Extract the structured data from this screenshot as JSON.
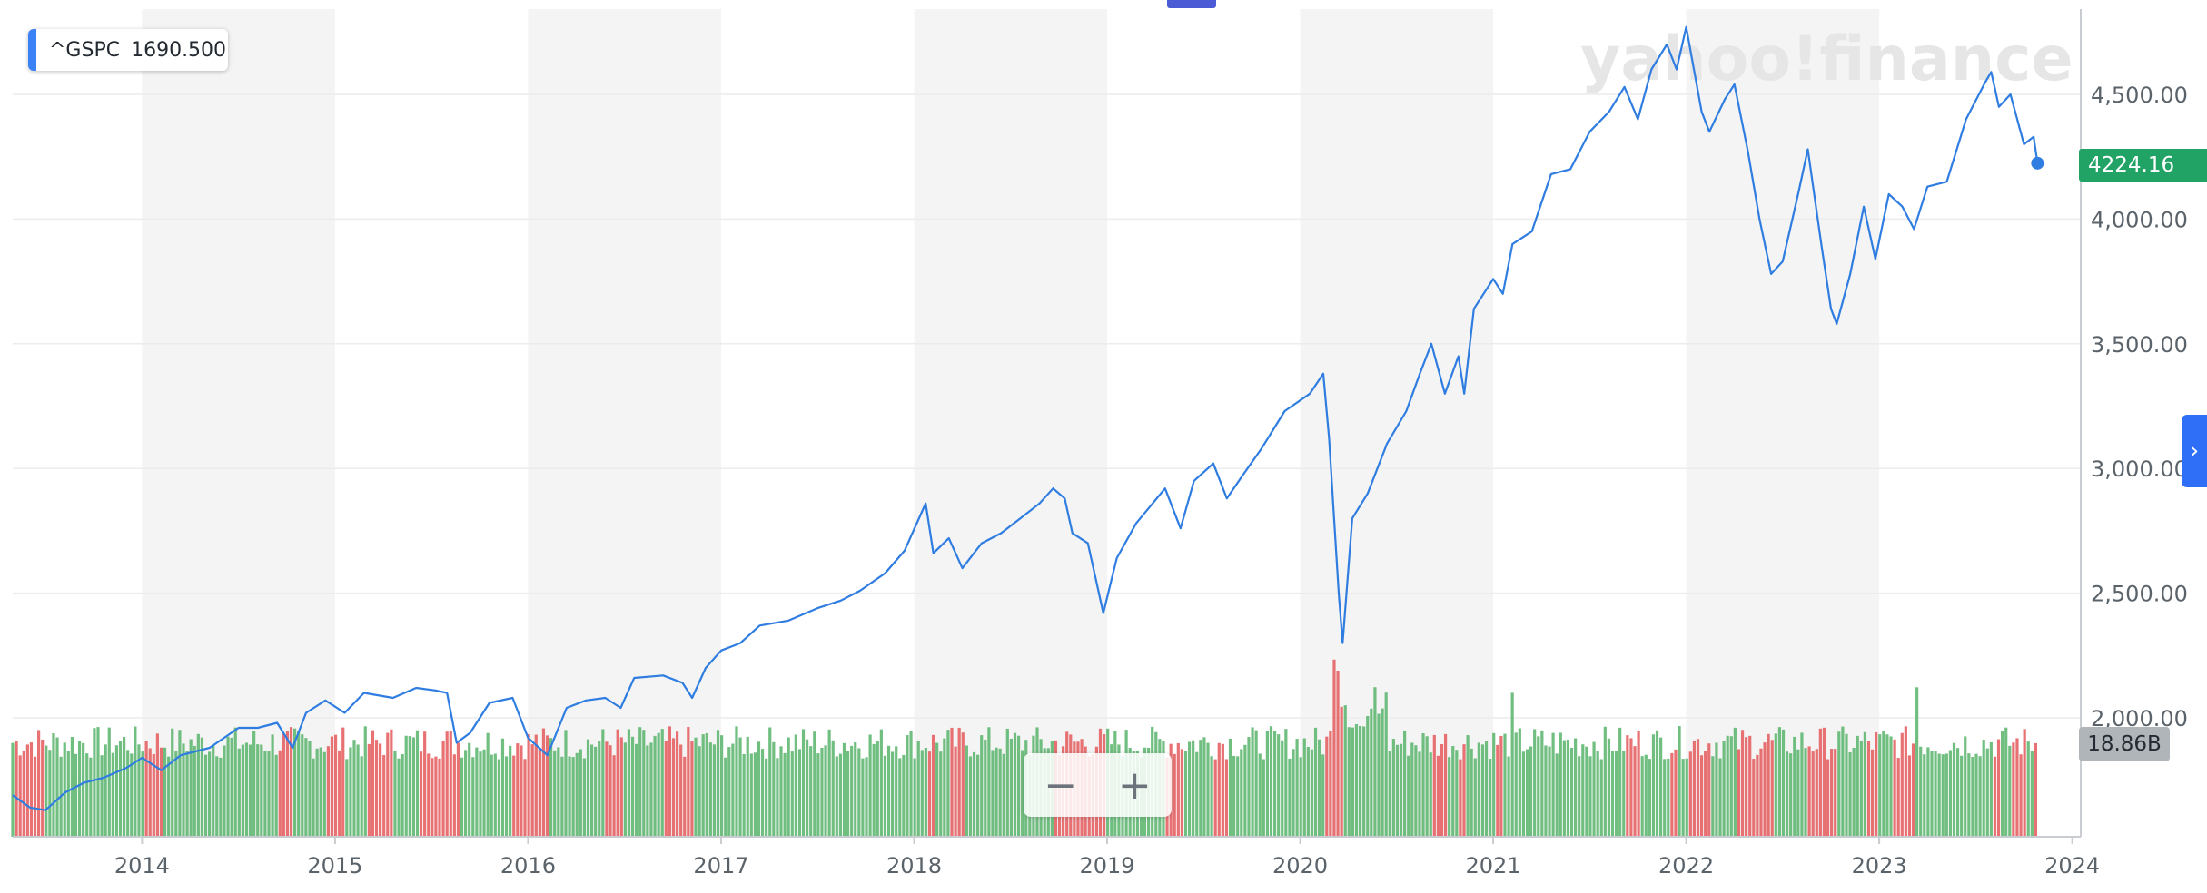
{
  "legend": {
    "symbol": "^GSPC",
    "value": "1690.500",
    "color": "#3b82f6"
  },
  "watermark": "yahoo!finance",
  "last_price_label": "4224.16",
  "last_volume_label": "18.86B",
  "zoom": {
    "minus": "−",
    "plus": "+"
  },
  "side_tab_icon": "chevron-right-icon",
  "colors": {
    "line": "#2f7de1",
    "volume_up": "#58b36b",
    "volume_down": "#e4595b",
    "last_price_bg": "#21a366",
    "band": "#f4f4f4"
  },
  "chart_data": {
    "type": "line",
    "title": "",
    "xlabel": "",
    "ylabel": "",
    "x_ticks": [
      "2014",
      "2015",
      "2016",
      "2017",
      "2018",
      "2019",
      "2020",
      "2021",
      "2022",
      "2023",
      "2024"
    ],
    "y_ticks": [
      "2,000.00",
      "2,500.00",
      "3,000.00",
      "3,500.00",
      "4,000.00",
      "4,500.00"
    ],
    "ylim": [
      1600,
      4800
    ],
    "xlim": [
      2013.33,
      2023.95
    ],
    "grid": true,
    "series": [
      {
        "name": "^GSPC",
        "points": [
          [
            2013.33,
            1690
          ],
          [
            2013.42,
            1640
          ],
          [
            2013.5,
            1630
          ],
          [
            2013.6,
            1700
          ],
          [
            2013.7,
            1740
          ],
          [
            2013.8,
            1760
          ],
          [
            2013.92,
            1800
          ],
          [
            2014.0,
            1840
          ],
          [
            2014.1,
            1790
          ],
          [
            2014.2,
            1850
          ],
          [
            2014.35,
            1880
          ],
          [
            2014.5,
            1960
          ],
          [
            2014.6,
            1960
          ],
          [
            2014.7,
            1980
          ],
          [
            2014.78,
            1880
          ],
          [
            2014.85,
            2020
          ],
          [
            2014.95,
            2070
          ],
          [
            2015.05,
            2020
          ],
          [
            2015.15,
            2100
          ],
          [
            2015.3,
            2080
          ],
          [
            2015.42,
            2120
          ],
          [
            2015.52,
            2110
          ],
          [
            2015.58,
            2100
          ],
          [
            2015.63,
            1900
          ],
          [
            2015.7,
            1940
          ],
          [
            2015.8,
            2060
          ],
          [
            2015.92,
            2080
          ],
          [
            2016.0,
            1920
          ],
          [
            2016.1,
            1850
          ],
          [
            2016.2,
            2040
          ],
          [
            2016.3,
            2070
          ],
          [
            2016.4,
            2080
          ],
          [
            2016.48,
            2040
          ],
          [
            2016.55,
            2160
          ],
          [
            2016.7,
            2170
          ],
          [
            2016.8,
            2140
          ],
          [
            2016.85,
            2080
          ],
          [
            2016.92,
            2200
          ],
          [
            2017.0,
            2270
          ],
          [
            2017.1,
            2300
          ],
          [
            2017.2,
            2370
          ],
          [
            2017.35,
            2390
          ],
          [
            2017.5,
            2440
          ],
          [
            2017.62,
            2470
          ],
          [
            2017.72,
            2510
          ],
          [
            2017.85,
            2580
          ],
          [
            2017.95,
            2670
          ],
          [
            2018.06,
            2860
          ],
          [
            2018.1,
            2660
          ],
          [
            2018.18,
            2720
          ],
          [
            2018.25,
            2600
          ],
          [
            2018.35,
            2700
          ],
          [
            2018.45,
            2740
          ],
          [
            2018.55,
            2800
          ],
          [
            2018.65,
            2860
          ],
          [
            2018.72,
            2920
          ],
          [
            2018.78,
            2880
          ],
          [
            2018.82,
            2740
          ],
          [
            2018.9,
            2700
          ],
          [
            2018.98,
            2420
          ],
          [
            2019.05,
            2640
          ],
          [
            2019.15,
            2780
          ],
          [
            2019.3,
            2920
          ],
          [
            2019.38,
            2760
          ],
          [
            2019.45,
            2950
          ],
          [
            2019.55,
            3020
          ],
          [
            2019.62,
            2880
          ],
          [
            2019.7,
            2970
          ],
          [
            2019.8,
            3080
          ],
          [
            2019.92,
            3230
          ],
          [
            2020.05,
            3300
          ],
          [
            2020.12,
            3380
          ],
          [
            2020.15,
            3120
          ],
          [
            2020.2,
            2500
          ],
          [
            2020.22,
            2300
          ],
          [
            2020.27,
            2800
          ],
          [
            2020.35,
            2900
          ],
          [
            2020.45,
            3100
          ],
          [
            2020.55,
            3230
          ],
          [
            2020.62,
            3380
          ],
          [
            2020.68,
            3500
          ],
          [
            2020.75,
            3300
          ],
          [
            2020.82,
            3450
          ],
          [
            2020.85,
            3300
          ],
          [
            2020.9,
            3640
          ],
          [
            2021.0,
            3760
          ],
          [
            2021.05,
            3700
          ],
          [
            2021.1,
            3900
          ],
          [
            2021.2,
            3950
          ],
          [
            2021.3,
            4180
          ],
          [
            2021.4,
            4200
          ],
          [
            2021.5,
            4350
          ],
          [
            2021.6,
            4430
          ],
          [
            2021.68,
            4530
          ],
          [
            2021.75,
            4400
          ],
          [
            2021.82,
            4600
          ],
          [
            2021.9,
            4700
          ],
          [
            2021.95,
            4600
          ],
          [
            2022.0,
            4770
          ],
          [
            2022.08,
            4430
          ],
          [
            2022.12,
            4350
          ],
          [
            2022.2,
            4480
          ],
          [
            2022.25,
            4540
          ],
          [
            2022.32,
            4270
          ],
          [
            2022.38,
            4000
          ],
          [
            2022.44,
            3780
          ],
          [
            2022.5,
            3830
          ],
          [
            2022.58,
            4100
          ],
          [
            2022.63,
            4280
          ],
          [
            2022.7,
            3900
          ],
          [
            2022.75,
            3640
          ],
          [
            2022.78,
            3580
          ],
          [
            2022.85,
            3780
          ],
          [
            2022.92,
            4050
          ],
          [
            2022.98,
            3840
          ],
          [
            2023.05,
            4100
          ],
          [
            2023.12,
            4050
          ],
          [
            2023.18,
            3960
          ],
          [
            2023.25,
            4130
          ],
          [
            2023.35,
            4150
          ],
          [
            2023.45,
            4400
          ],
          [
            2023.55,
            4550
          ],
          [
            2023.58,
            4590
          ],
          [
            2023.62,
            4450
          ],
          [
            2023.68,
            4500
          ],
          [
            2023.75,
            4300
          ],
          [
            2023.8,
            4330
          ],
          [
            2023.82,
            4224
          ]
        ]
      },
      {
        "name": "Volume",
        "unit": "B",
        "summary": "weekly volume bars, mostly 15-22B, spike ~32B in March 2020, last 18.86B",
        "spikes": [
          [
            2020.18,
            32
          ],
          [
            2020.2,
            30
          ],
          [
            2021.1,
            26
          ],
          [
            2023.2,
            27
          ]
        ]
      }
    ]
  }
}
